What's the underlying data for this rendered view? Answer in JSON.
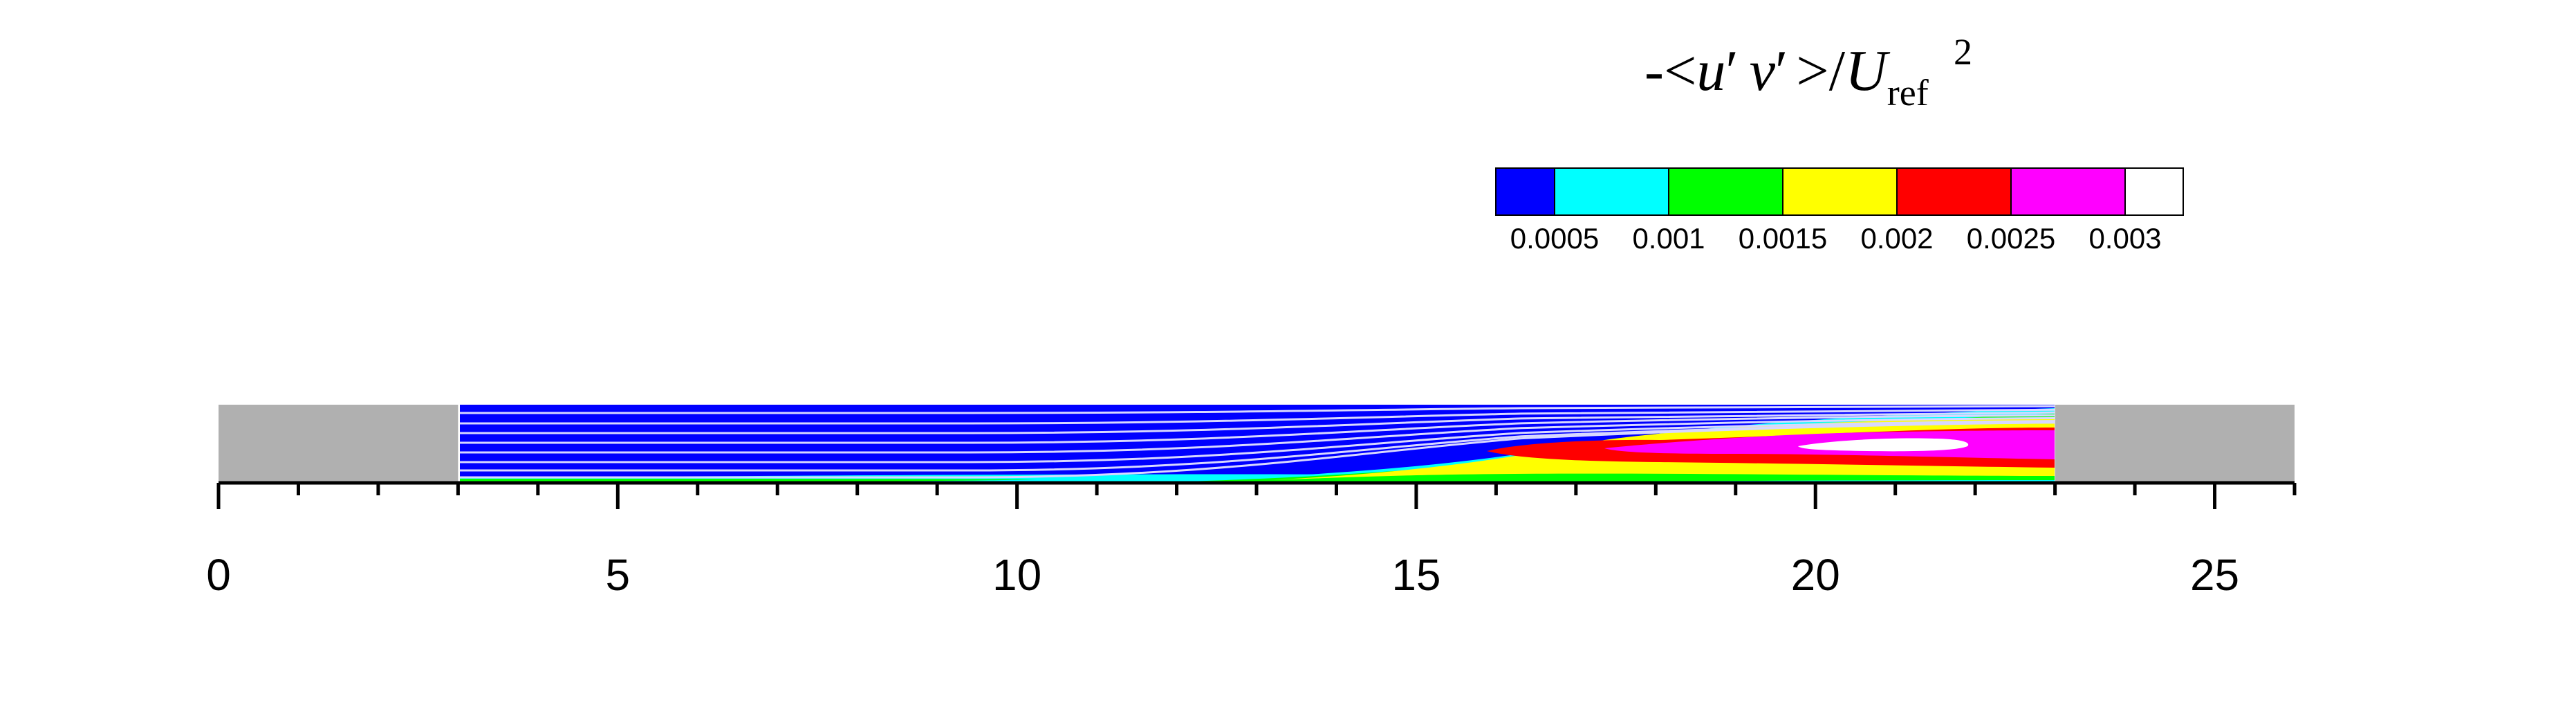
{
  "chart_data": {
    "type": "heatmap",
    "title_parts": {
      "prefix": "-<",
      "u": "u",
      "prime1": "′",
      "v": "v",
      "prime2": "′",
      "middle": ">/",
      "U": "U",
      "subscript": "ref",
      "superscript": "2"
    },
    "colorbar": {
      "colors": [
        "#0000ff",
        "#00ffff",
        "#00ff00",
        "#ffff00",
        "#ff0000",
        "#ff00ff",
        "#ffffff"
      ],
      "levels": [
        0.0005,
        0.001,
        0.0015,
        0.002,
        0.0025,
        0.003
      ],
      "tick_labels": [
        "0.0005",
        "0.001",
        "0.0015",
        "0.002",
        "0.0025",
        "0.003"
      ]
    },
    "x_axis": {
      "xlim": [
        0,
        26
      ],
      "major_ticks": [
        0,
        5,
        10,
        15,
        20,
        25
      ],
      "major_labels": [
        "0",
        "5",
        "10",
        "15",
        "20",
        "25"
      ],
      "minor_step": 1
    },
    "domain": {
      "solid_blocks": [
        [
          0,
          3
        ],
        [
          23,
          26
        ]
      ],
      "solid_color": "#b0b0b0",
      "flow_region": [
        3,
        23
      ]
    },
    "regions": [
      {
        "level": "0.0005-0.001",
        "x_start": 11.5,
        "x_end": 23
      },
      {
        "level": "0.001-0.0015",
        "x_start": 12,
        "x_end": 23
      },
      {
        "level": "0.0015-0.002",
        "x_start": 13,
        "x_end": 23
      },
      {
        "level": "0.002-0.0025",
        "x_start": 15.5,
        "x_end": 22.8
      },
      {
        "level": "0.0025-0.003",
        "x_start": 17,
        "x_end": 23
      },
      {
        "level": ">0.003",
        "x_start": 19.8,
        "x_end": 21.9
      }
    ],
    "streamlines": true,
    "grid": false
  }
}
